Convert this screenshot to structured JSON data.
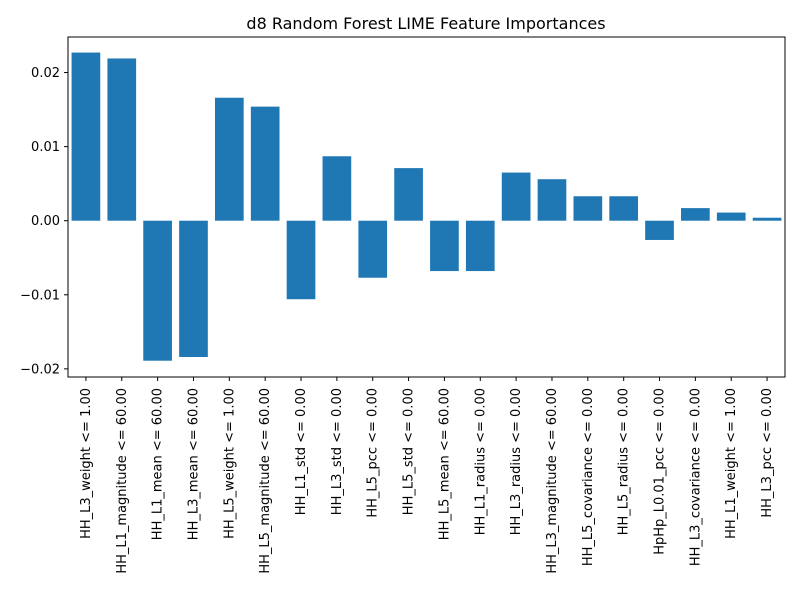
{
  "chart_data": {
    "type": "bar",
    "title": "d8 Random Forest LIME Feature Importances",
    "xlabel": "",
    "ylabel": "",
    "categories": [
      "HH_L3_weight <= 1.00",
      "HH_L1_magnitude <= 60.00",
      "HH_L1_mean <= 60.00",
      "HH_L3_mean <= 60.00",
      "HH_L5_weight <= 1.00",
      "HH_L5_magnitude <= 60.00",
      "HH_L1_std <= 0.00",
      "HH_L3_std <= 0.00",
      "HH_L5_pcc <= 0.00",
      "HH_L5_std <= 0.00",
      "HH_L5_mean <= 60.00",
      "HH_L1_radius <= 0.00",
      "HH_L3_radius <= 0.00",
      "HH_L3_magnitude <= 60.00",
      "HH_L5_covariance <= 0.00",
      "HH_L5_radius <= 0.00",
      "HpHp_L0.01_pcc <= 0.00",
      "HH_L3_covariance <= 0.00",
      "HH_L1_weight <= 1.00",
      "HH_L3_pcc <= 0.00"
    ],
    "values": [
      0.0227,
      0.0219,
      -0.0189,
      -0.0184,
      0.0166,
      0.0154,
      -0.0106,
      0.0087,
      -0.0077,
      0.0071,
      -0.0068,
      -0.0068,
      0.0065,
      0.0056,
      0.0033,
      0.0033,
      -0.0026,
      0.0017,
      0.0011,
      0.0004
    ],
    "ylim": [
      -0.0211,
      0.0248
    ],
    "yticks": [
      -0.02,
      -0.01,
      0.0,
      0.01,
      0.02
    ],
    "ytick_labels": [
      "−0.02",
      "−0.01",
      "0.00",
      "0.01",
      "0.02"
    ],
    "grid": false,
    "color": "#1f77b4"
  }
}
